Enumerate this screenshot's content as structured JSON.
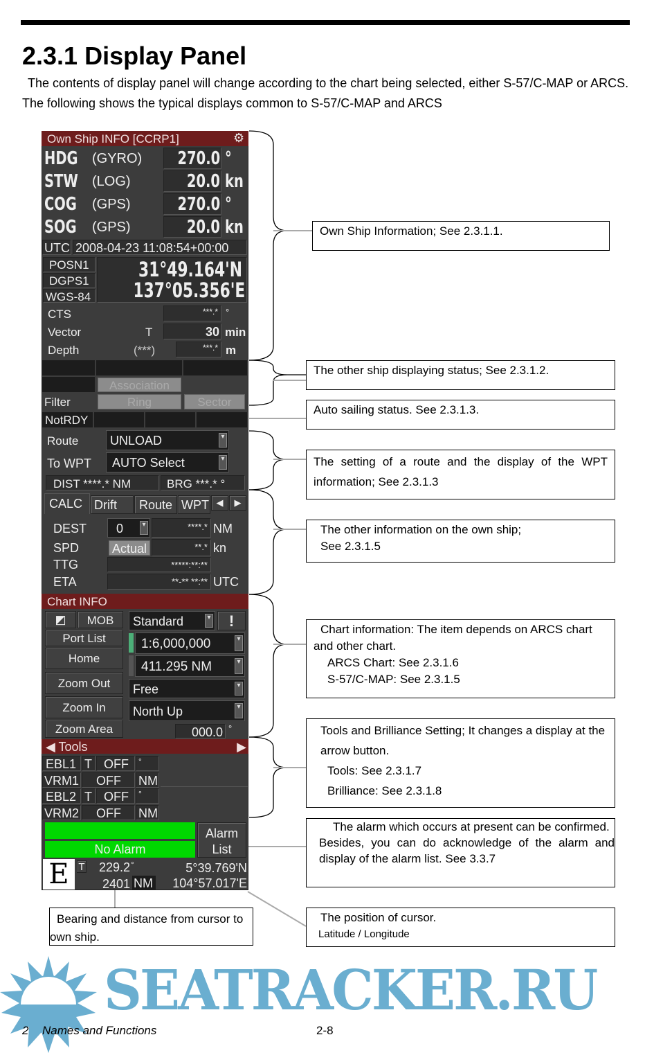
{
  "page": {
    "section_title": "2.3.1  Display Panel",
    "intro": "The contents of display panel will change according to the chart being selected, either S-57/C-MAP or ARCS. The following shows the typical displays common to S-57/C-MAP and ARCS",
    "footer_chapter": "2",
    "footer_title": "Names and Functions",
    "footer_page": "2-8",
    "watermark": "SEATRACKER.RU"
  },
  "panel": {
    "own_ship": {
      "title": "Own Ship INFO [CCRP1]",
      "rows": [
        {
          "label": "HDG",
          "source": "(GYRO)",
          "value": "270.0",
          "unit": "°"
        },
        {
          "label": "STW",
          "source": "(LOG)",
          "value": "20.0",
          "unit": "kn"
        },
        {
          "label": "COG",
          "source": "(GPS)",
          "value": "270.0",
          "unit": "°"
        },
        {
          "label": "SOG",
          "source": "(GPS)",
          "value": "20.0",
          "unit": "kn"
        }
      ],
      "utc_label": "UTC",
      "utc_value": "2008-04-23 11:08:54+00:00",
      "posn": "POSN1",
      "fix": "DGPS1",
      "datum": "WGS-84",
      "lat": "31°49.164'N",
      "lon": "137°05.356'E",
      "cts_label": "CTS",
      "cts_value": "***.*",
      "cts_unit": "°",
      "vector_label": "Vector",
      "vector_mode": "T",
      "vector_value": "30",
      "vector_unit": "min",
      "depth_label": "Depth",
      "depth_source": "(***)",
      "depth_value": "***.*",
      "depth_unit": "m"
    },
    "other_ship": {
      "association": "Association",
      "filter": "Filter",
      "ring": "Ring",
      "sector": "Sector"
    },
    "auto_sail": {
      "status": "NotRDY"
    },
    "route": {
      "route_label": "Route",
      "route_value": "UNLOAD",
      "wpt_label": "To WPT",
      "wpt_value": "AUTO Select",
      "dist": "DIST ****.* NM",
      "brg": "BRG ***.* °"
    },
    "calc": {
      "tabs": [
        "CALC",
        "Drift",
        "Route",
        "WPT"
      ],
      "dest_label": "DEST",
      "dest_value": "0",
      "dest_dist": "****.*",
      "dest_unit": "NM",
      "spd_label": "SPD",
      "spd_mode": "Actual",
      "spd_value": "**.*",
      "spd_unit": "kn",
      "ttg_label": "TTG",
      "ttg_value": "*****:**:**",
      "eta_label": "ETA",
      "eta_value": "**-** **:**",
      "eta_unit": "UTC"
    },
    "chart": {
      "title": "Chart INFO",
      "mob": "MOB",
      "display_mode": "Standard",
      "alert": "!",
      "port_list": "Port List",
      "home": "Home",
      "zoom_out": "Zoom Out",
      "zoom_in": "Zoom In",
      "zoom_area": "Zoom Area",
      "scale": "1:6,000,000",
      "range": "411.295 NM",
      "motion": "Free",
      "orientation": "North Up",
      "rotation": "000.0",
      "rotation_unit": "°"
    },
    "tools": {
      "title": "Tools",
      "rows": [
        {
          "name": "EBL1",
          "mode": "T",
          "state": "OFF",
          "unit": "°"
        },
        {
          "name": "VRM1",
          "mode": "",
          "state": "OFF",
          "unit": "NM"
        },
        {
          "name": "EBL2",
          "mode": "T",
          "state": "OFF",
          "unit": "°"
        },
        {
          "name": "VRM2",
          "mode": "",
          "state": "OFF",
          "unit": "NM"
        }
      ]
    },
    "alarm": {
      "status": "No Alarm",
      "list_line1": "Alarm",
      "list_line2": "List",
      "color": "#00d800"
    },
    "cursor": {
      "brilliance": "E",
      "mode": "T",
      "bearing": "229.2",
      "bearing_unit": "°",
      "distance": "2401",
      "distance_unit": "NM",
      "lat": "5°39.769'N",
      "lon": "104°57.017'E"
    }
  },
  "callouts": {
    "own_ship": "Own Ship Information; See 2.3.1.1.",
    "other_ship": "The other ship displaying status; See 2.3.1.2.",
    "auto_sail": "Auto sailing status. See 2.3.1.3.",
    "route": "The setting of a route and the display of the WPT information; See 2.3.1.3",
    "other_info_1": "The other information on the own ship;",
    "other_info_2": "See 2.3.1.5",
    "chart_1": "Chart information: The item depends on ARCS chart and other chart.",
    "chart_2": "ARCS Chart: See 2.3.1.6",
    "chart_3": "S-57/C-MAP: See 2.3.1.5",
    "tools_1": "Tools and Brilliance Setting; It changes a display at the arrow button.",
    "tools_2": "Tools: See 2.3.1.7",
    "tools_3": "Brilliance: See 2.3.1.8",
    "alarm_1": "The alarm which occurs at present can be confirmed.",
    "alarm_2": "Besides, you can do acknowledge of the alarm and display of the alarm list. See 3.3.7",
    "bearing": "Bearing and distance from cursor to own ship.",
    "cursor_1": "The position of cursor.",
    "cursor_2": "Latitude / Longitude"
  }
}
